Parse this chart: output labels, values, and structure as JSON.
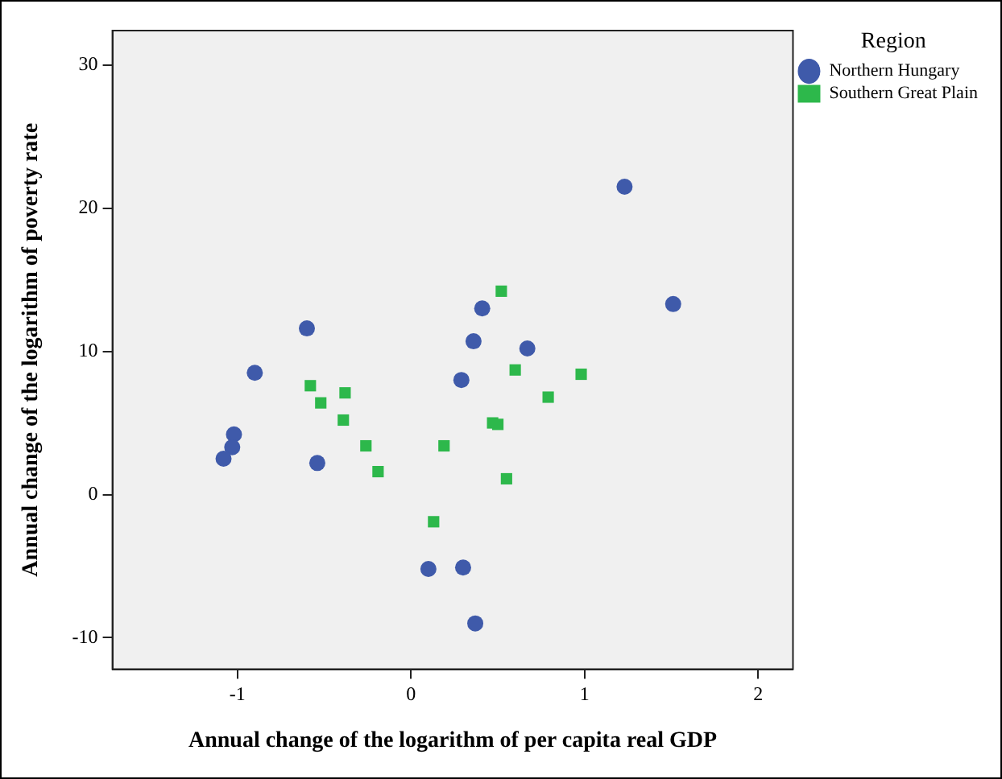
{
  "chart_data": {
    "type": "scatter",
    "xlabel": "Annual change of the logarithm of per capita real GDP",
    "ylabel": "Annual change of the logarithm of poverty rate",
    "legend_title": "Region",
    "legend": "right",
    "grid": false,
    "xlim": [
      -1.72,
      2.2
    ],
    "xticks": [
      -1,
      0,
      1,
      2
    ],
    "ylim": [
      -12.2,
      32.4
    ],
    "yticks": [
      -10,
      0,
      10,
      20,
      30
    ],
    "series": [
      {
        "name": "Northern Hungary",
        "color": "#3f5aaa",
        "marker": "circle",
        "x": [
          1.23,
          1.51,
          0.41,
          0.36,
          0.67,
          -0.6,
          -0.9,
          -1.02,
          -1.03,
          -1.08,
          -0.54,
          0.1,
          0.29,
          0.3,
          0.37
        ],
        "values": [
          21.5,
          13.3,
          13.0,
          10.7,
          10.2,
          11.6,
          8.5,
          4.2,
          3.3,
          2.5,
          2.2,
          -5.2,
          8.0,
          -5.1,
          -9.0
        ]
      },
      {
        "name": "Southern Great Plain",
        "color": "#2db84b",
        "marker": "square",
        "x": [
          0.52,
          -0.58,
          -0.38,
          -0.52,
          -0.39,
          -0.26,
          0.19,
          -0.19,
          0.13,
          0.6,
          0.98,
          0.79,
          0.47,
          0.5,
          0.55
        ],
        "values": [
          14.2,
          7.6,
          7.1,
          6.4,
          5.2,
          3.4,
          3.4,
          1.6,
          -1.9,
          8.7,
          8.4,
          6.8,
          5.0,
          4.9,
          1.1
        ]
      }
    ]
  }
}
